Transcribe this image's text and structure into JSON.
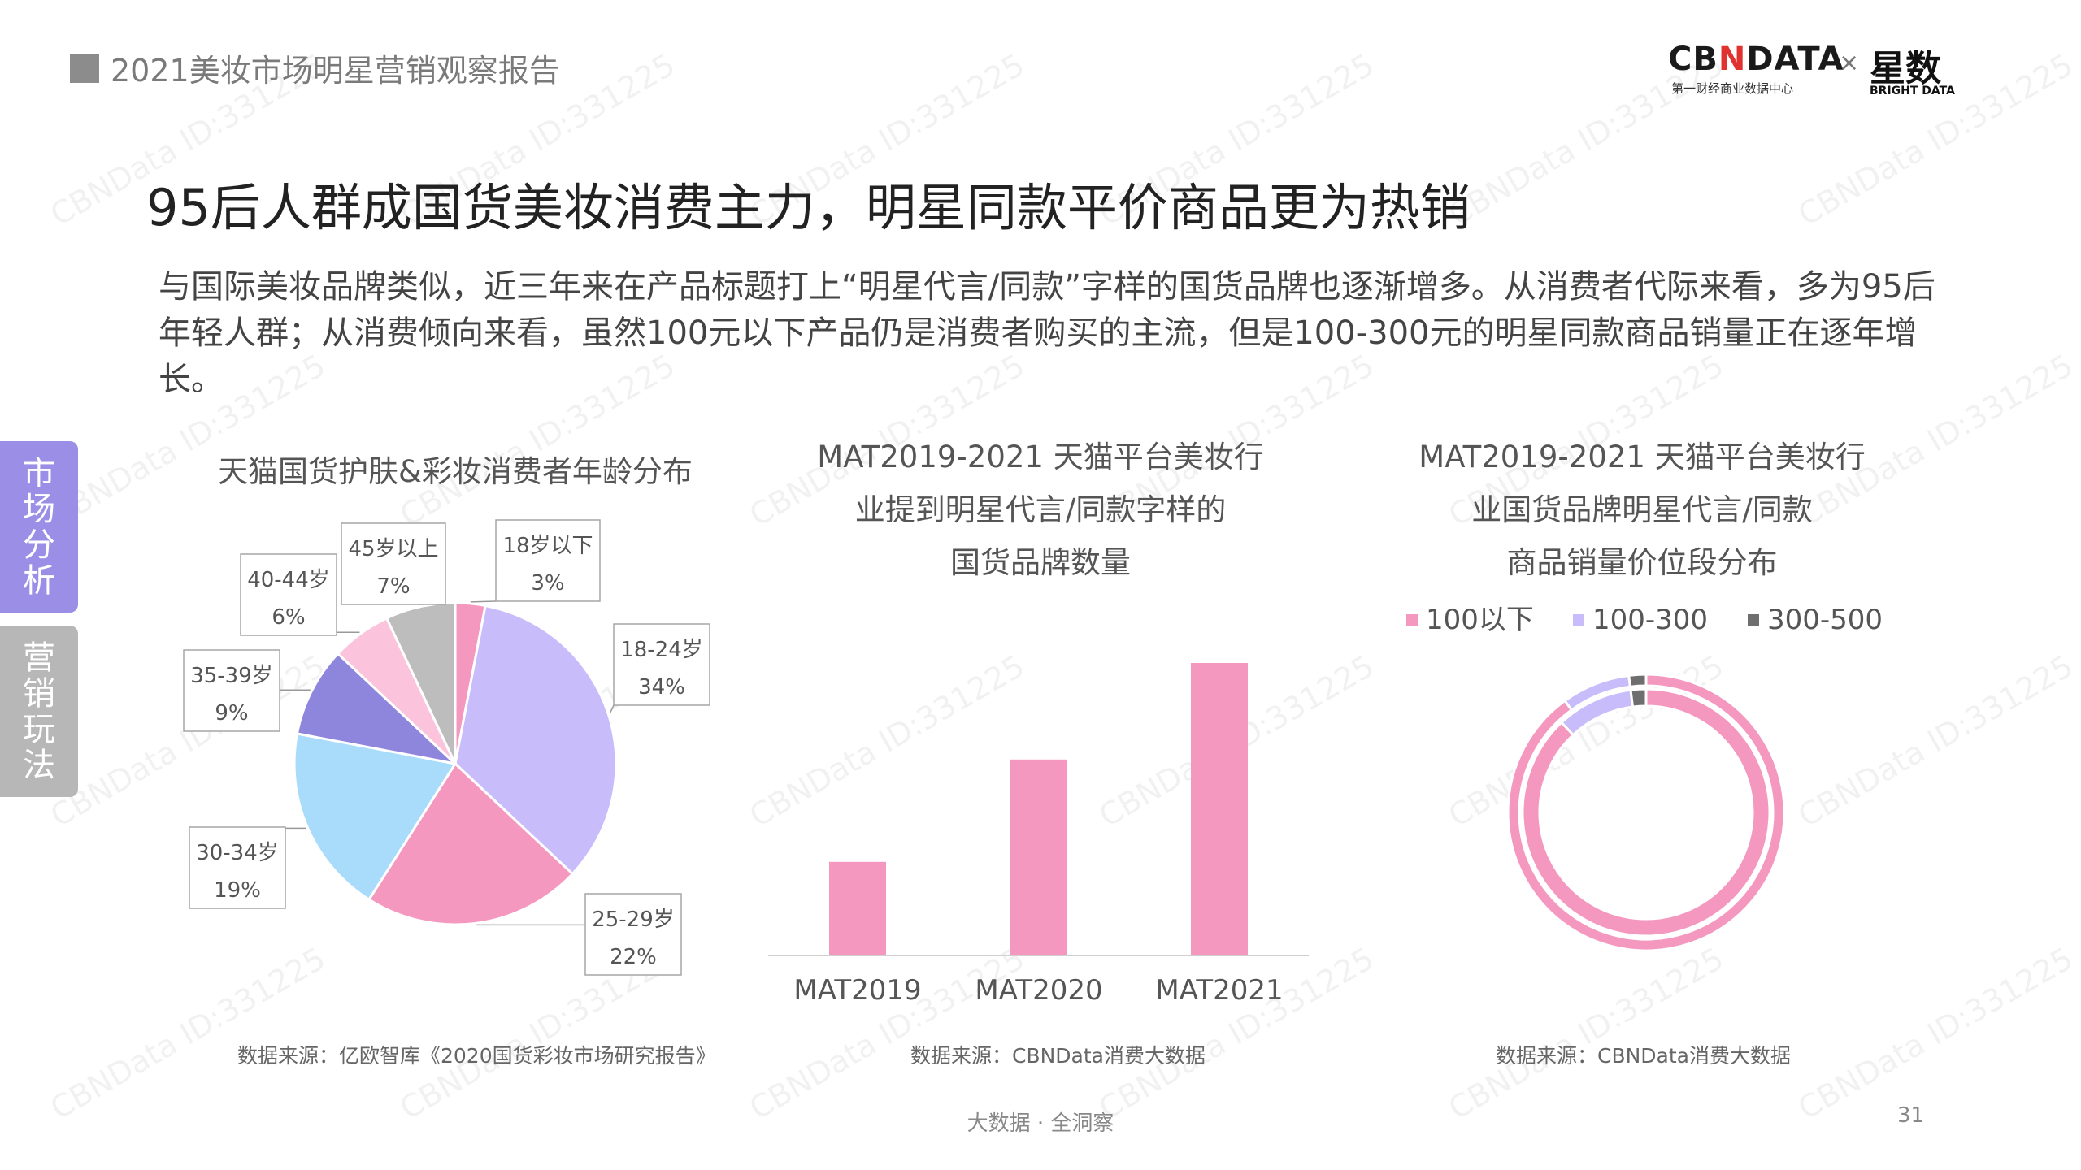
{
  "header": {
    "report_title": "2021美妆市场明星营销观察报告"
  },
  "logos": {
    "cbndata_prefix": "CB",
    "cbndata_n": "N",
    "cbndata_suffix": "DATA",
    "cbndata_sub": "第一财经商业数据中心",
    "times": "×",
    "bright": "星数",
    "bright_sub": "BRIGHT DATA"
  },
  "main": {
    "title": "95后人群成国货美妆消费主力，明星同款平价商品更为热销",
    "description": "与国际美妆品牌类似，近三年来在产品标题打上“明星代言/同款”字样的国货品牌也逐渐增多。从消费者代际来看，多为95后年轻人群；从消费倾向来看，虽然100元以下产品仍是消费者购买的主流，但是100-300元的明星同款商品销量正在逐年增长。"
  },
  "side_tabs": [
    {
      "chars": [
        "市",
        "场",
        "分",
        "析"
      ],
      "active": true
    },
    {
      "chars": [
        "营",
        "销",
        "玩",
        "法"
      ],
      "active": false
    }
  ],
  "watermark": "CBNData ID:331225",
  "chart_data": [
    {
      "type": "pie",
      "title": "天猫国货护肤&彩妆消费者年龄分布",
      "slices": [
        {
          "label": "18岁以下",
          "value": 3,
          "value_label": "3%",
          "color": "#f598c0"
        },
        {
          "label": "18-24岁",
          "value": 34,
          "value_label": "34%",
          "color": "#c8bdfa"
        },
        {
          "label": "25-29岁",
          "value": 22,
          "value_label": "22%",
          "color": "#f598c0"
        },
        {
          "label": "30-34岁",
          "value": 19,
          "value_label": "19%",
          "color": "#a9dcfb"
        },
        {
          "label": "35-39岁",
          "value": 9,
          "value_label": "9%",
          "color": "#8e86dc"
        },
        {
          "label": "40-44岁",
          "value": 6,
          "value_label": "6%",
          "color": "#fbc3dc"
        },
        {
          "label": "45岁以上",
          "value": 7,
          "value_label": "7%",
          "color": "#bdbdbd"
        }
      ],
      "source": "数据来源：亿欧智库《2020国货彩妆市场研究报告》"
    },
    {
      "type": "bar",
      "title_lines": [
        "MAT2019-2021 天猫平台美妆行",
        "业提到明星代言/同款字样的",
        "国货品牌数量"
      ],
      "categories": [
        "MAT2019",
        "MAT2020",
        "MAT2021"
      ],
      "values": [
        32,
        67,
        100
      ],
      "ylim": [
        0,
        100
      ],
      "color": "#f598c0",
      "source": "数据来源：CBNData消费大数据"
    },
    {
      "type": "donut",
      "title_lines": [
        "MAT2019-2021 天猫平台美妆行",
        "业国货品牌明星代言/同款",
        "商品销量价位段分布"
      ],
      "legend": [
        {
          "label": "100以下",
          "color": "#f598c0"
        },
        {
          "label": "100-300",
          "color": "#c8bdfa"
        },
        {
          "label": "300-500",
          "color": "#6e6e6e"
        }
      ],
      "rings": [
        {
          "values": [
            88,
            10,
            2
          ]
        },
        {
          "values": [
            90,
            8,
            2
          ]
        }
      ],
      "source": "数据来源：CBNData消费大数据"
    }
  ],
  "footer": {
    "slogan": "大数据 · 全洞察",
    "page_number": "31"
  }
}
